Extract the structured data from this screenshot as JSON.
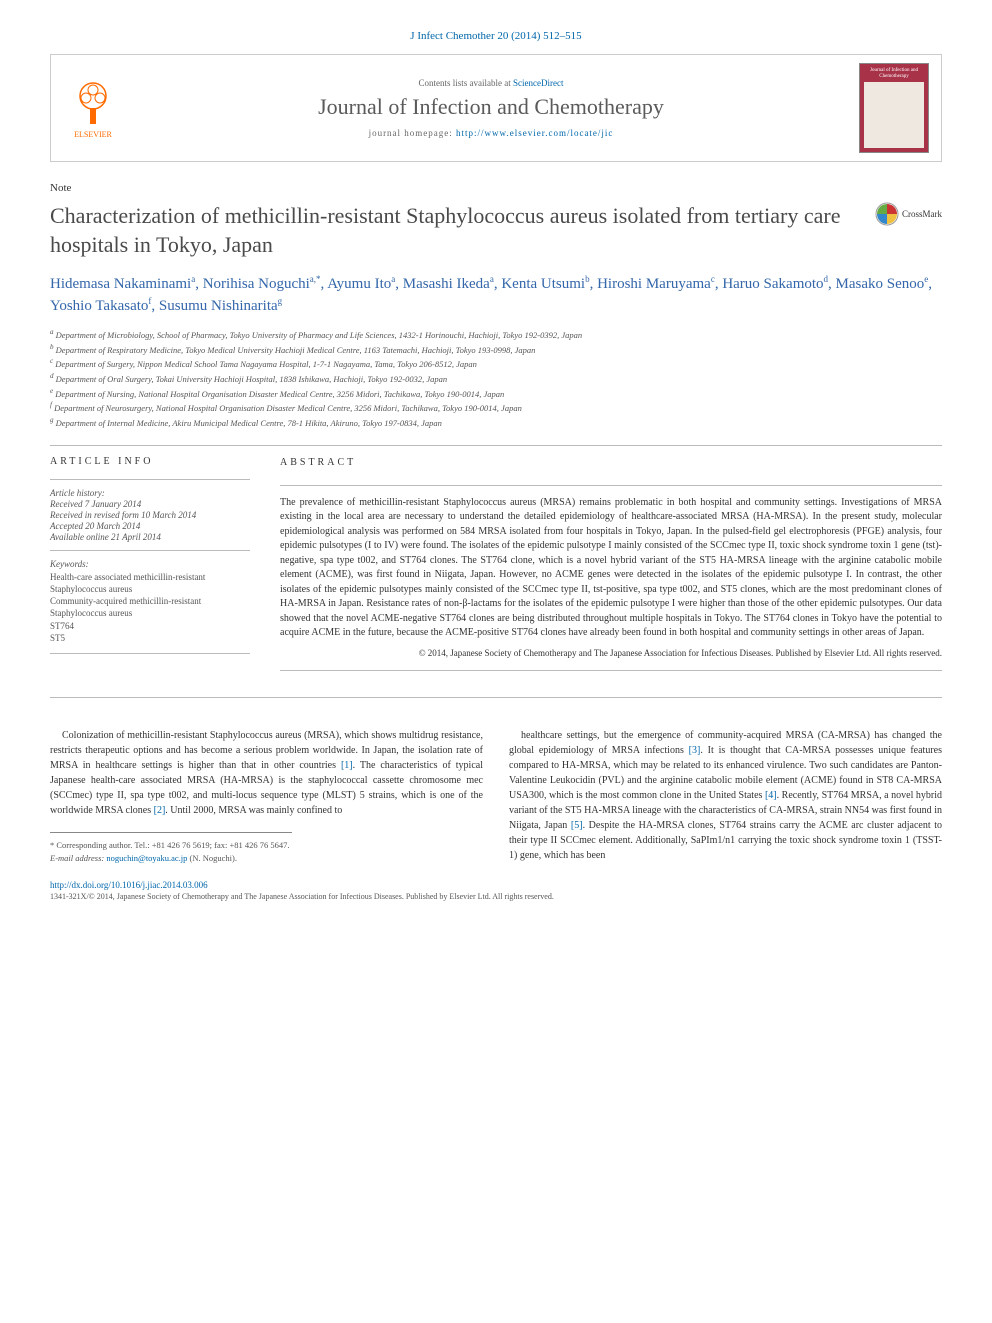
{
  "journal_ref": "J Infect Chemother 20 (2014) 512–515",
  "header": {
    "contents_prefix": "Contents lists available at ",
    "contents_link": "ScienceDirect",
    "journal_name": "Journal of Infection and Chemotherapy",
    "homepage_prefix": "journal homepage: ",
    "homepage_url": "http://www.elsevier.com/locate/jic",
    "publisher_logo_text": "ELSEVIER",
    "cover_text": "Journal of Infection and Chemotherapy"
  },
  "note_label": "Note",
  "title": "Characterization of methicillin-resistant Staphylococcus aureus isolated from tertiary care hospitals in Tokyo, Japan",
  "crossmark_label": "CrossMark",
  "authors_html": "Hidemasa Nakaminami<sup>a</sup>, Norihisa Noguchi<sup>a,*</sup>, Ayumu Ito<sup>a</sup>, Masashi Ikeda<sup>a</sup>, Kenta Utsumi<sup>b</sup>, Hiroshi Maruyama<sup>c</sup>, Haruo Sakamoto<sup>d</sup>, Masako Senoo<sup>e</sup>, Yoshio Takasato<sup>f</sup>, Susumu Nishinarita<sup>g</sup>",
  "affiliations": [
    "a Department of Microbiology, School of Pharmacy, Tokyo University of Pharmacy and Life Sciences, 1432-1 Horinouchi, Hachioji, Tokyo 192-0392, Japan",
    "b Department of Respiratory Medicine, Tokyo Medical University Hachioji Medical Centre, 1163 Tatemachi, Hachioji, Tokyo 193-0998, Japan",
    "c Department of Surgery, Nippon Medical School Tama Nagayama Hospital, 1-7-1 Nagayama, Tama, Tokyo 206-8512, Japan",
    "d Department of Oral Surgery, Tokai University Hachioji Hospital, 1838 Ishikawa, Hachioji, Tokyo 192-0032, Japan",
    "e Department of Nursing, National Hospital Organisation Disaster Medical Centre, 3256 Midori, Tachikawa, Tokyo 190-0014, Japan",
    "f Department of Neurosurgery, National Hospital Organisation Disaster Medical Centre, 3256 Midori, Tachikawa, Tokyo 190-0014, Japan",
    "g Department of Internal Medicine, Akiru Municipal Medical Centre, 78-1 Hikita, Akiruno, Tokyo 197-0834, Japan"
  ],
  "article_info": {
    "heading": "ARTICLE INFO",
    "history_label": "Article history:",
    "received": "Received 7 January 2014",
    "revised": "Received in revised form 10 March 2014",
    "accepted": "Accepted 20 March 2014",
    "online": "Available online 21 April 2014",
    "keywords_label": "Keywords:",
    "keywords": [
      "Health-care associated methicillin-resistant Staphylococcus aureus",
      "Community-acquired methicillin-resistant Staphylococcus aureus",
      "ST764",
      "ST5"
    ]
  },
  "abstract": {
    "heading": "ABSTRACT",
    "text": "The prevalence of methicillin-resistant Staphylococcus aureus (MRSA) remains problematic in both hospital and community settings. Investigations of MRSA existing in the local area are necessary to understand the detailed epidemiology of healthcare-associated MRSA (HA-MRSA). In the present study, molecular epidemiological analysis was performed on 584 MRSA isolated from four hospitals in Tokyo, Japan. In the pulsed-field gel electrophoresis (PFGE) analysis, four epidemic pulsotypes (I to IV) were found. The isolates of the epidemic pulsotype I mainly consisted of the SCCmec type II, toxic shock syndrome toxin 1 gene (tst)-negative, spa type t002, and ST764 clones. The ST764 clone, which is a novel hybrid variant of the ST5 HA-MRSA lineage with the arginine catabolic mobile element (ACME), was first found in Niigata, Japan. However, no ACME genes were detected in the isolates of the epidemic pulsotype I. In contrast, the other isolates of the epidemic pulsotypes mainly consisted of the SCCmec type II, tst-positive, spa type t002, and ST5 clones, which are the most predominant clones of HA-MRSA in Japan. Resistance rates of non-β-lactams for the isolates of the epidemic pulsotype I were higher than those of the other epidemic pulsotypes. Our data showed that the novel ACME-negative ST764 clones are being distributed throughout multiple hospitals in Tokyo. The ST764 clones in Tokyo have the potential to acquire ACME in the future, because the ACME-positive ST764 clones have already been found in both hospital and community settings in other areas of Japan.",
    "copyright": "© 2014, Japanese Society of Chemotherapy and The Japanese Association for Infectious Diseases. Published by Elsevier Ltd. All rights reserved."
  },
  "body": {
    "col1": "Colonization of methicillin-resistant Staphylococcus aureus (MRSA), which shows multidrug resistance, restricts therapeutic options and has become a serious problem worldwide. In Japan, the isolation rate of MRSA in healthcare settings is higher than that in other countries [1]. The characteristics of typical Japanese health-care associated MRSA (HA-MRSA) is the staphylococcal cassette chromosome mec (SCCmec) type II, spa type t002, and multi-locus sequence type (MLST) 5 strains, which is one of the worldwide MRSA clones [2]. Until 2000, MRSA was mainly confined to",
    "col2": "healthcare settings, but the emergence of community-acquired MRSA (CA-MRSA) has changed the global epidemiology of MRSA infections [3]. It is thought that CA-MRSA possesses unique features compared to HA-MRSA, which may be related to its enhanced virulence. Two such candidates are Panton-Valentine Leukocidin (PVL) and the arginine catabolic mobile element (ACME) found in ST8 CA-MRSA USA300, which is the most common clone in the United States [4]. Recently, ST764 MRSA, a novel hybrid variant of the ST5 HA-MRSA lineage with the characteristics of CA-MRSA, strain NN54 was first found in Niigata, Japan [5]. Despite the HA-MRSA clones, ST764 strains carry the ACME arc cluster adjacent to their type II SCCmec element. Additionally, SaPIm1/n1 carrying the toxic shock syndrome toxin 1 (TSST-1) gene, which has been"
  },
  "corresp": {
    "label": "* Corresponding author. Tel.: +81 426 76 5619; fax: +81 426 76 5647.",
    "email_label": "E-mail address: ",
    "email": "noguchin@toyaku.ac.jp",
    "email_name": " (N. Noguchi)."
  },
  "footer": {
    "doi": "http://dx.doi.org/10.1016/j.jiac.2014.03.006",
    "issn_copy": "1341-321X/© 2014, Japanese Society of Chemotherapy and The Japanese Association for Infectious Diseases. Published by Elsevier Ltd. All rights reserved."
  },
  "colors": {
    "link": "#0066aa",
    "author": "#3366aa",
    "elsevier_orange": "#ff6b00",
    "cover_bg": "#a83248"
  }
}
